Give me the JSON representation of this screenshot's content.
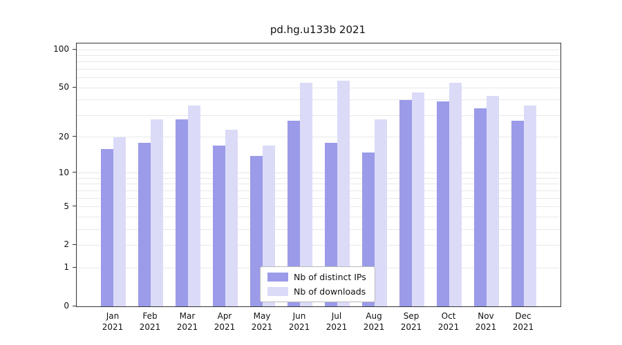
{
  "chart_data": {
    "type": "bar",
    "title": "pd.hg.u133b 2021",
    "categories": [
      "Jan",
      "Feb",
      "Mar",
      "Apr",
      "May",
      "Jun",
      "Jul",
      "Aug",
      "Sep",
      "Oct",
      "Nov",
      "Dec"
    ],
    "year": "2021",
    "series": [
      {
        "name": "Nb of distinct IPs",
        "color": "#9b9bea",
        "values": [
          16,
          18,
          28,
          17,
          14,
          27,
          18,
          15,
          40,
          39,
          34,
          27
        ]
      },
      {
        "name": "Nb of downloads",
        "color": "#dbdbf8",
        "values": [
          20,
          28,
          36,
          23,
          17,
          55,
          57,
          28,
          46,
          55,
          43,
          36
        ]
      }
    ],
    "y_ticks": [
      0,
      1,
      2,
      5,
      10,
      20,
      50,
      100
    ],
    "y_scale": "log10(1+v)",
    "ylim": [
      0,
      110
    ],
    "grid": true,
    "legend_position": "lower center",
    "colors": {
      "grid": "#e8e8e8",
      "axis": "#333333",
      "background": "#ffffff"
    }
  }
}
